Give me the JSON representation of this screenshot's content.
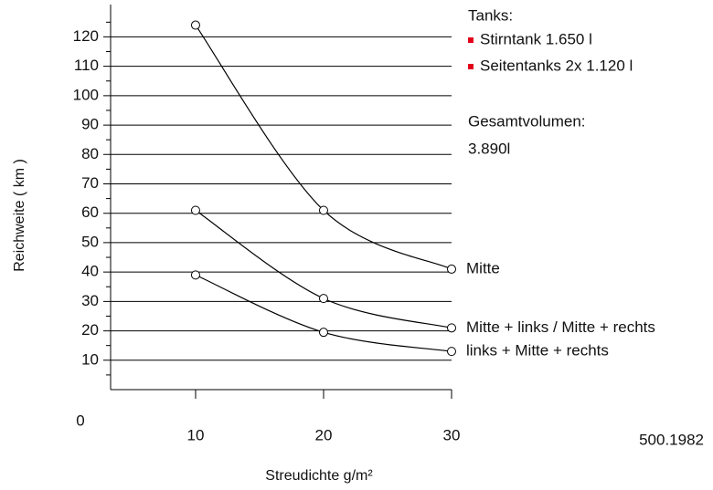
{
  "chart_data": {
    "type": "line",
    "x": [
      10,
      20,
      30
    ],
    "xlim": [
      3.36,
      30
    ],
    "xticks": [
      10,
      20,
      30
    ],
    "ylim": [
      0,
      131
    ],
    "yticks": [
      10,
      20,
      30,
      40,
      50,
      60,
      70,
      80,
      90,
      100,
      110,
      120
    ],
    "yminorticks": [
      5,
      15,
      25,
      35,
      45,
      55,
      65,
      75,
      85,
      95,
      105,
      115,
      125
    ],
    "origin_label": 0,
    "grid": true,
    "color": "#000000",
    "series": [
      {
        "name": "Mitte",
        "values": [
          124,
          61,
          41
        ]
      },
      {
        "name": "Mitte + links  /  Mitte + rechts",
        "values": [
          61,
          31,
          21
        ]
      },
      {
        "name": "links + Mitte + rechts",
        "values": [
          39,
          19.5,
          13
        ]
      }
    ],
    "ylabel": "Reichweite ( km )",
    "xlabel": "Streudichte g/m²",
    "info_title": "Tanks:",
    "info_items": [
      "Stirntank 1.650 l",
      "Seitentanks 2x 1.120 l"
    ],
    "bullet_color": "#e2001a",
    "total_label": "Gesamtvolumen:",
    "total_value": "3.890l",
    "figure_id": "500.1982"
  }
}
